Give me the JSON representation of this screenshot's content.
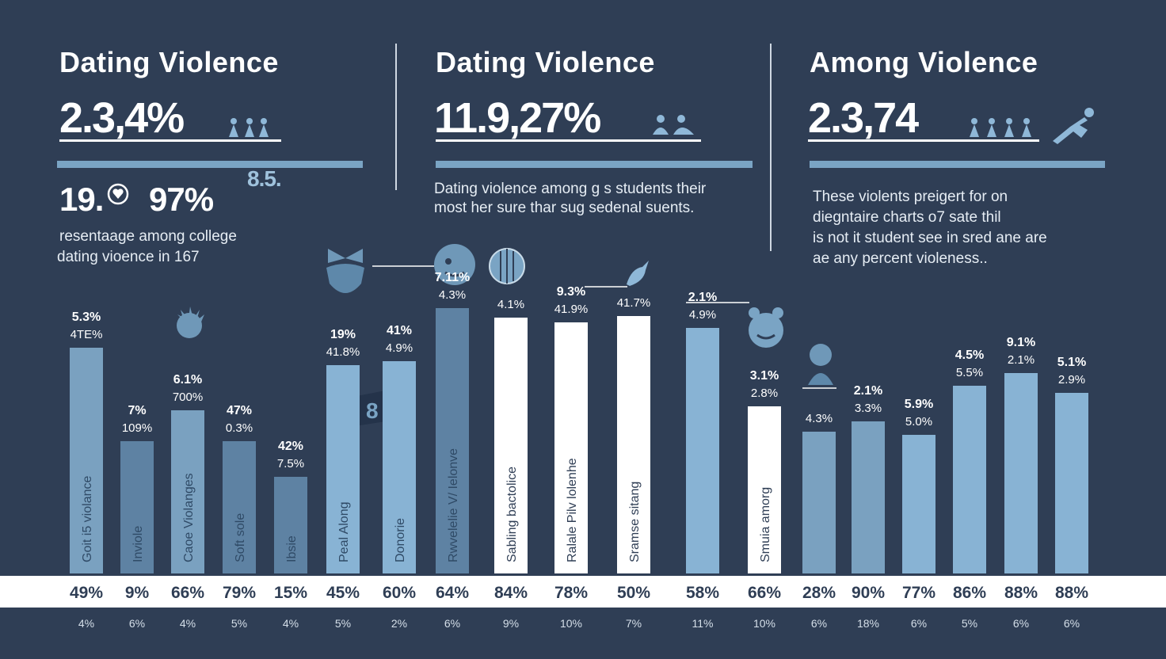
{
  "panels": [
    {
      "title": "Dating Violence",
      "stat": "2.3,4%",
      "secondary_stats": [
        "19.",
        "97%",
        "8.5."
      ],
      "desc_lines": [
        "resentaage among college",
        "dating vioence in 167"
      ]
    },
    {
      "title": "Dating  Violence",
      "stat": "11.9,27%",
      "desc_lines": [
        "Dating violence among g s students their",
        "most her sure thar sug sedenal suents."
      ]
    },
    {
      "title": "Among  Violence",
      "stat": "2.3,74",
      "desc_lines": [
        "These violents preigert for on",
        "diegntaire charts o7 sate thil",
        "is not it student see in sred ane are",
        "ae any percent violeness.."
      ]
    }
  ],
  "colors": {
    "background": "#2f3e55",
    "bar_steel": "#7aa1c0",
    "bar_slate": "#5e82a3",
    "bar_light": "#88b3d4",
    "bar_white": "#ffffff",
    "accent": "#7aa4c4"
  },
  "chart_data": {
    "type": "bar",
    "categories": [
      "Goit i5 violance",
      "Inviole",
      "Caoe Violanges",
      "Soft sole",
      "Ibsie",
      "Peal Along",
      "Donorie",
      "Rwvelelie V/ Ielonve",
      "Sabling bactolice",
      "Ralale Pilv lolenhe",
      "Sramse sitang",
      "",
      "Smuia amorg",
      "",
      "",
      "",
      "",
      "",
      ""
    ],
    "values": [
      49,
      9,
      66,
      79,
      15,
      45,
      60,
      64,
      84,
      78,
      50,
      58,
      66,
      28,
      90,
      77,
      86,
      88,
      88
    ],
    "value_labels": [
      "49%",
      "9%",
      "66%",
      "79%",
      "15%",
      "45%",
      "60%",
      "64%",
      "84%",
      "78%",
      "50%",
      "58%",
      "66%",
      "28%",
      "90%",
      "77%",
      "86%",
      "88%",
      "88%"
    ],
    "sub_labels": [
      "4%",
      "6%",
      "4%",
      "5%",
      "4%",
      "5%",
      "2%",
      "6%",
      "9%",
      "10%",
      "7%",
      "11%",
      "10%",
      "6%",
      "18%",
      "6%",
      "5%",
      "6%",
      "6%"
    ],
    "top_labels": [
      [
        "5.3%",
        "4TE%"
      ],
      [
        "7%",
        "109%"
      ],
      [
        "6.1%",
        "700%"
      ],
      [
        "47%",
        "0.3%"
      ],
      [
        "42%",
        "7.5%"
      ],
      [
        "19%",
        "41.8%"
      ],
      [
        "41%",
        "4.9%"
      ],
      [
        "7.11%",
        "4.3%"
      ],
      [
        "4.1%"
      ],
      [
        "9.3%",
        "41.9%"
      ],
      [
        "41.7%"
      ],
      [
        "2.1%",
        "4.9%"
      ],
      [
        "3.1%",
        "2.8%"
      ],
      [
        "4.3%"
      ],
      [
        "2.1%",
        "3.3%"
      ],
      [
        "5.9%",
        "5.0%"
      ],
      [
        "4.5%",
        "5.5%"
      ],
      [
        "9.1%",
        "2.1%"
      ],
      [
        "5.1%",
        "2.9%"
      ]
    ],
    "bar_heights_data": [
      285,
      167,
      206,
      167,
      122,
      263,
      268,
      335,
      323,
      317,
      325,
      310,
      211,
      179,
      192,
      175,
      237,
      253,
      228
    ],
    "styles": [
      "steel",
      "slate",
      "steel",
      "slate",
      "slate",
      "light",
      "light",
      "slate",
      "white",
      "white",
      "white",
      "light",
      "white",
      "steel",
      "steel",
      "light",
      "light",
      "light",
      "light"
    ]
  }
}
